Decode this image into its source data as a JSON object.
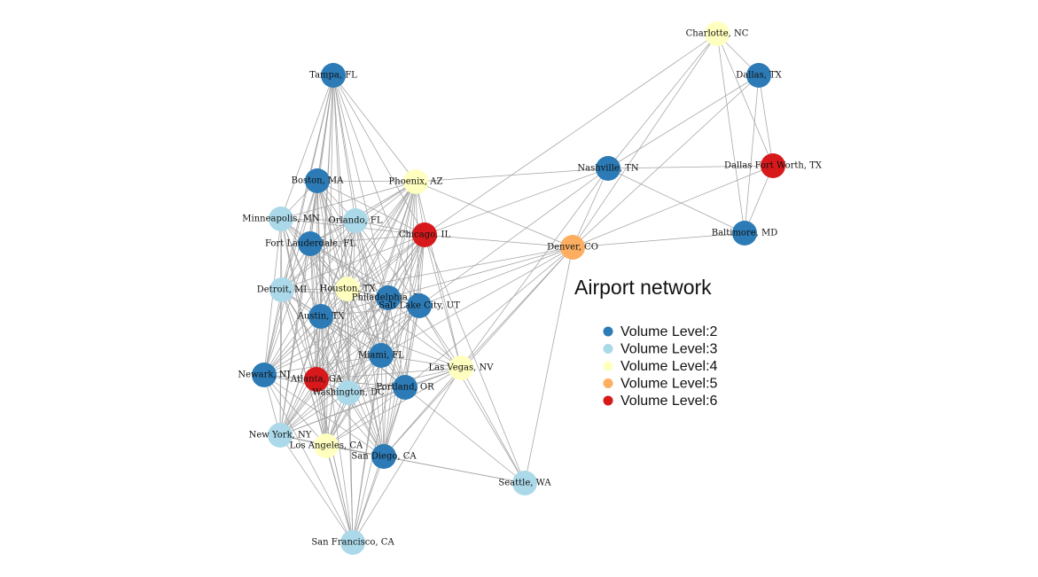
{
  "title": "Airport network",
  "legend": [
    {
      "label": "Volume Level:2",
      "level": 2
    },
    {
      "label": "Volume Level:3",
      "level": 3
    },
    {
      "label": "Volume Level:4",
      "level": 4
    },
    {
      "label": "Volume Level:5",
      "level": 5
    },
    {
      "label": "Volume Level:6",
      "level": 6
    }
  ],
  "colors": {
    "2": "#2c7bb6",
    "3": "#abd9e9",
    "4": "#ffffbf",
    "5": "#fdae61",
    "6": "#d7191c",
    "edge": "#a3a3a3"
  },
  "nodes": [
    {
      "id": "charlotte",
      "label": "Charlotte, NC",
      "level": 4
    },
    {
      "id": "dallas",
      "label": "Dallas, TX",
      "level": 2
    },
    {
      "id": "dfw",
      "label": "Dallas Fort Worth, TX",
      "level": 6
    },
    {
      "id": "nashville",
      "label": "Nashville, TN",
      "level": 2
    },
    {
      "id": "baltimore",
      "label": "Baltimore, MD",
      "level": 2
    },
    {
      "id": "denver",
      "label": "Denver, CO",
      "level": 5
    },
    {
      "id": "seattle",
      "label": "Seattle, WA",
      "level": 3
    },
    {
      "id": "tampa",
      "label": "Tampa, FL",
      "level": 2
    },
    {
      "id": "boston",
      "label": "Boston, MA",
      "level": 2
    },
    {
      "id": "phoenix",
      "label": "Phoenix, AZ",
      "level": 4
    },
    {
      "id": "minneapolis",
      "label": "Minneapolis, MN",
      "level": 3
    },
    {
      "id": "orlando",
      "label": "Orlando, FL",
      "level": 3
    },
    {
      "id": "chicago",
      "label": "Chicago, IL",
      "level": 6
    },
    {
      "id": "fortlauderdale",
      "label": "Fort Lauderdale, FL",
      "level": 2
    },
    {
      "id": "detroit",
      "label": "Detroit, MI",
      "level": 3
    },
    {
      "id": "houston",
      "label": "Houston, TX",
      "level": 4
    },
    {
      "id": "philadelphia",
      "label": "Philadelphia, PA",
      "level": 2
    },
    {
      "id": "saltlake",
      "label": "Salt Lake City, UT",
      "level": 2
    },
    {
      "id": "austin",
      "label": "Austin, TX",
      "level": 2
    },
    {
      "id": "miami",
      "label": "Miami, FL",
      "level": 2
    },
    {
      "id": "lasvegas",
      "label": "Las Vegas, NV",
      "level": 4
    },
    {
      "id": "newark",
      "label": "Newark, NJ",
      "level": 2
    },
    {
      "id": "atlanta",
      "label": "Atlanta, GA",
      "level": 6
    },
    {
      "id": "washington",
      "label": "Washington, DC",
      "level": 3
    },
    {
      "id": "portland",
      "label": "Portland, OR",
      "level": 2
    },
    {
      "id": "newyork",
      "label": "New York, NY",
      "level": 3
    },
    {
      "id": "losangeles",
      "label": "Los Angeles, CA",
      "level": 4
    },
    {
      "id": "sandiego",
      "label": "San Diego, CA",
      "level": 2
    },
    {
      "id": "sanfrancisco",
      "label": "San Francisco, CA",
      "level": 3
    }
  ],
  "edges": [
    [
      "charlotte",
      "dallas"
    ],
    [
      "charlotte",
      "dfw"
    ],
    [
      "charlotte",
      "baltimore"
    ],
    [
      "charlotte",
      "nashville"
    ],
    [
      "charlotte",
      "denver"
    ],
    [
      "charlotte",
      "chicago"
    ],
    [
      "dallas",
      "dfw"
    ],
    [
      "dallas",
      "baltimore"
    ],
    [
      "dallas",
      "nashville"
    ],
    [
      "dallas",
      "denver"
    ],
    [
      "dfw",
      "baltimore"
    ],
    [
      "dfw",
      "nashville"
    ],
    [
      "dfw",
      "denver"
    ],
    [
      "nashville",
      "denver"
    ],
    [
      "nashville",
      "baltimore"
    ],
    [
      "nashville",
      "phoenix"
    ],
    [
      "nashville",
      "lasvegas"
    ],
    [
      "nashville",
      "chicago"
    ],
    [
      "nashville",
      "saltlake"
    ],
    [
      "baltimore",
      "denver"
    ],
    [
      "denver",
      "seattle"
    ],
    [
      "denver",
      "chicago"
    ],
    [
      "denver",
      "phoenix"
    ],
    [
      "denver",
      "lasvegas"
    ],
    [
      "denver",
      "saltlake"
    ],
    [
      "denver",
      "philadelphia"
    ],
    [
      "denver",
      "portland"
    ],
    [
      "denver",
      "houston"
    ],
    [
      "denver",
      "miami"
    ],
    [
      "denver",
      "sandiego"
    ],
    [
      "seattle",
      "sandiego"
    ],
    [
      "seattle",
      "lasvegas"
    ],
    [
      "seattle",
      "chicago"
    ],
    [
      "seattle",
      "portland"
    ],
    [
      "seattle",
      "losangeles"
    ],
    [
      "seattle",
      "saltlake"
    ],
    [
      "tampa",
      "boston"
    ],
    [
      "tampa",
      "phoenix"
    ],
    [
      "tampa",
      "minneapolis"
    ],
    [
      "tampa",
      "orlando"
    ],
    [
      "tampa",
      "chicago"
    ],
    [
      "tampa",
      "fortlauderdale"
    ],
    [
      "tampa",
      "detroit"
    ],
    [
      "tampa",
      "houston"
    ],
    [
      "tampa",
      "philadelphia"
    ],
    [
      "tampa",
      "saltlake"
    ],
    [
      "tampa",
      "austin"
    ],
    [
      "tampa",
      "miami"
    ],
    [
      "tampa",
      "newark"
    ],
    [
      "tampa",
      "atlanta"
    ],
    [
      "tampa",
      "washington"
    ],
    [
      "tampa",
      "newyork"
    ],
    [
      "tampa",
      "losangeles"
    ],
    [
      "boston",
      "phoenix"
    ],
    [
      "boston",
      "minneapolis"
    ],
    [
      "boston",
      "orlando"
    ],
    [
      "boston",
      "chicago"
    ],
    [
      "boston",
      "fortlauderdale"
    ],
    [
      "boston",
      "detroit"
    ],
    [
      "boston",
      "houston"
    ],
    [
      "boston",
      "philadelphia"
    ],
    [
      "boston",
      "austin"
    ],
    [
      "boston",
      "miami"
    ],
    [
      "boston",
      "newark"
    ],
    [
      "boston",
      "atlanta"
    ],
    [
      "boston",
      "washington"
    ],
    [
      "boston",
      "newyork"
    ],
    [
      "boston",
      "losangeles"
    ],
    [
      "boston",
      "sandiego"
    ],
    [
      "boston",
      "portland"
    ],
    [
      "phoenix",
      "minneapolis"
    ],
    [
      "phoenix",
      "orlando"
    ],
    [
      "phoenix",
      "chicago"
    ],
    [
      "phoenix",
      "fortlauderdale"
    ],
    [
      "phoenix",
      "detroit"
    ],
    [
      "phoenix",
      "houston"
    ],
    [
      "phoenix",
      "philadelphia"
    ],
    [
      "phoenix",
      "saltlake"
    ],
    [
      "phoenix",
      "austin"
    ],
    [
      "phoenix",
      "miami"
    ],
    [
      "phoenix",
      "lasvegas"
    ],
    [
      "phoenix",
      "newark"
    ],
    [
      "phoenix",
      "atlanta"
    ],
    [
      "phoenix",
      "washington"
    ],
    [
      "phoenix",
      "portland"
    ],
    [
      "phoenix",
      "newyork"
    ],
    [
      "phoenix",
      "losangeles"
    ],
    [
      "phoenix",
      "sandiego"
    ],
    [
      "minneapolis",
      "orlando"
    ],
    [
      "minneapolis",
      "chicago"
    ],
    [
      "minneapolis",
      "fortlauderdale"
    ],
    [
      "minneapolis",
      "detroit"
    ],
    [
      "minneapolis",
      "houston"
    ],
    [
      "minneapolis",
      "philadelphia"
    ],
    [
      "minneapolis",
      "austin"
    ],
    [
      "minneapolis",
      "miami"
    ],
    [
      "minneapolis",
      "newark"
    ],
    [
      "minneapolis",
      "atlanta"
    ],
    [
      "minneapolis",
      "washington"
    ],
    [
      "minneapolis",
      "newyork"
    ],
    [
      "minneapolis",
      "losangeles"
    ],
    [
      "minneapolis",
      "sanfrancisco"
    ],
    [
      "orlando",
      "chicago"
    ],
    [
      "orlando",
      "fortlauderdale"
    ],
    [
      "orlando",
      "detroit"
    ],
    [
      "orlando",
      "houston"
    ],
    [
      "orlando",
      "philadelphia"
    ],
    [
      "orlando",
      "saltlake"
    ],
    [
      "orlando",
      "austin"
    ],
    [
      "orlando",
      "miami"
    ],
    [
      "orlando",
      "newark"
    ],
    [
      "orlando",
      "atlanta"
    ],
    [
      "orlando",
      "washington"
    ],
    [
      "orlando",
      "newyork"
    ],
    [
      "orlando",
      "losangeles"
    ],
    [
      "orlando",
      "sandiego"
    ],
    [
      "orlando",
      "portland"
    ],
    [
      "chicago",
      "fortlauderdale"
    ],
    [
      "chicago",
      "detroit"
    ],
    [
      "chicago",
      "houston"
    ],
    [
      "chicago",
      "philadelphia"
    ],
    [
      "chicago",
      "saltlake"
    ],
    [
      "chicago",
      "austin"
    ],
    [
      "chicago",
      "miami"
    ],
    [
      "chicago",
      "lasvegas"
    ],
    [
      "chicago",
      "newark"
    ],
    [
      "chicago",
      "atlanta"
    ],
    [
      "chicago",
      "washington"
    ],
    [
      "chicago",
      "portland"
    ],
    [
      "chicago",
      "newyork"
    ],
    [
      "chicago",
      "losangeles"
    ],
    [
      "chicago",
      "sandiego"
    ],
    [
      "chicago",
      "sanfrancisco"
    ],
    [
      "fortlauderdale",
      "detroit"
    ],
    [
      "fortlauderdale",
      "houston"
    ],
    [
      "fortlauderdale",
      "philadelphia"
    ],
    [
      "fortlauderdale",
      "austin"
    ],
    [
      "fortlauderdale",
      "miami"
    ],
    [
      "fortlauderdale",
      "newark"
    ],
    [
      "fortlauderdale",
      "atlanta"
    ],
    [
      "fortlauderdale",
      "washington"
    ],
    [
      "fortlauderdale",
      "newyork"
    ],
    [
      "fortlauderdale",
      "losangeles"
    ],
    [
      "fortlauderdale",
      "sandiego"
    ],
    [
      "fortlauderdale",
      "saltlake"
    ],
    [
      "detroit",
      "houston"
    ],
    [
      "detroit",
      "philadelphia"
    ],
    [
      "detroit",
      "austin"
    ],
    [
      "detroit",
      "miami"
    ],
    [
      "detroit",
      "newark"
    ],
    [
      "detroit",
      "atlanta"
    ],
    [
      "detroit",
      "washington"
    ],
    [
      "detroit",
      "newyork"
    ],
    [
      "detroit",
      "losangeles"
    ],
    [
      "detroit",
      "sanfrancisco"
    ],
    [
      "detroit",
      "sandiego"
    ],
    [
      "detroit",
      "portland"
    ],
    [
      "houston",
      "philadelphia"
    ],
    [
      "houston",
      "saltlake"
    ],
    [
      "houston",
      "austin"
    ],
    [
      "houston",
      "miami"
    ],
    [
      "houston",
      "lasvegas"
    ],
    [
      "houston",
      "newark"
    ],
    [
      "houston",
      "atlanta"
    ],
    [
      "houston",
      "washington"
    ],
    [
      "houston",
      "portland"
    ],
    [
      "houston",
      "newyork"
    ],
    [
      "houston",
      "losangeles"
    ],
    [
      "houston",
      "sandiego"
    ],
    [
      "houston",
      "sanfrancisco"
    ],
    [
      "philadelphia",
      "saltlake"
    ],
    [
      "philadelphia",
      "austin"
    ],
    [
      "philadelphia",
      "miami"
    ],
    [
      "philadelphia",
      "lasvegas"
    ],
    [
      "philadelphia",
      "newark"
    ],
    [
      "philadelphia",
      "atlanta"
    ],
    [
      "philadelphia",
      "washington"
    ],
    [
      "philadelphia",
      "portland"
    ],
    [
      "philadelphia",
      "newyork"
    ],
    [
      "philadelphia",
      "losangeles"
    ],
    [
      "philadelphia",
      "sandiego"
    ],
    [
      "philadelphia",
      "sanfrancisco"
    ],
    [
      "saltlake",
      "austin"
    ],
    [
      "saltlake",
      "miami"
    ],
    [
      "saltlake",
      "lasvegas"
    ],
    [
      "saltlake",
      "atlanta"
    ],
    [
      "saltlake",
      "washington"
    ],
    [
      "saltlake",
      "portland"
    ],
    [
      "saltlake",
      "losangeles"
    ],
    [
      "saltlake",
      "sandiego"
    ],
    [
      "saltlake",
      "newark"
    ],
    [
      "saltlake",
      "newyork"
    ],
    [
      "austin",
      "miami"
    ],
    [
      "austin",
      "newark"
    ],
    [
      "austin",
      "atlanta"
    ],
    [
      "austin",
      "washington"
    ],
    [
      "austin",
      "portland"
    ],
    [
      "austin",
      "newyork"
    ],
    [
      "austin",
      "losangeles"
    ],
    [
      "austin",
      "sandiego"
    ],
    [
      "austin",
      "sanfrancisco"
    ],
    [
      "austin",
      "lasvegas"
    ],
    [
      "miami",
      "lasvegas"
    ],
    [
      "miami",
      "newark"
    ],
    [
      "miami",
      "atlanta"
    ],
    [
      "miami",
      "washington"
    ],
    [
      "miami",
      "portland"
    ],
    [
      "miami",
      "newyork"
    ],
    [
      "miami",
      "losangeles"
    ],
    [
      "miami",
      "sandiego"
    ],
    [
      "miami",
      "sanfrancisco"
    ],
    [
      "lasvegas",
      "atlanta"
    ],
    [
      "lasvegas",
      "washington"
    ],
    [
      "lasvegas",
      "portland"
    ],
    [
      "lasvegas",
      "losangeles"
    ],
    [
      "lasvegas",
      "sandiego"
    ],
    [
      "lasvegas",
      "sanfrancisco"
    ],
    [
      "lasvegas",
      "newyork"
    ],
    [
      "newark",
      "atlanta"
    ],
    [
      "newark",
      "washington"
    ],
    [
      "newark",
      "newyork"
    ],
    [
      "newark",
      "losangeles"
    ],
    [
      "newark",
      "sanfrancisco"
    ],
    [
      "newark",
      "sandiego"
    ],
    [
      "newark",
      "portland"
    ],
    [
      "atlanta",
      "washington"
    ],
    [
      "atlanta",
      "portland"
    ],
    [
      "atlanta",
      "newyork"
    ],
    [
      "atlanta",
      "losangeles"
    ],
    [
      "atlanta",
      "sandiego"
    ],
    [
      "atlanta",
      "sanfrancisco"
    ],
    [
      "washington",
      "portland"
    ],
    [
      "washington",
      "newyork"
    ],
    [
      "washington",
      "losangeles"
    ],
    [
      "washington",
      "sandiego"
    ],
    [
      "washington",
      "sanfrancisco"
    ],
    [
      "portland",
      "losangeles"
    ],
    [
      "portland",
      "sandiego"
    ],
    [
      "portland",
      "sanfrancisco"
    ],
    [
      "portland",
      "newyork"
    ],
    [
      "newyork",
      "losangeles"
    ],
    [
      "newyork",
      "sanfrancisco"
    ],
    [
      "newyork",
      "sandiego"
    ],
    [
      "losangeles",
      "sandiego"
    ],
    [
      "losangeles",
      "sanfrancisco"
    ],
    [
      "sandiego",
      "sanfrancisco"
    ]
  ]
}
